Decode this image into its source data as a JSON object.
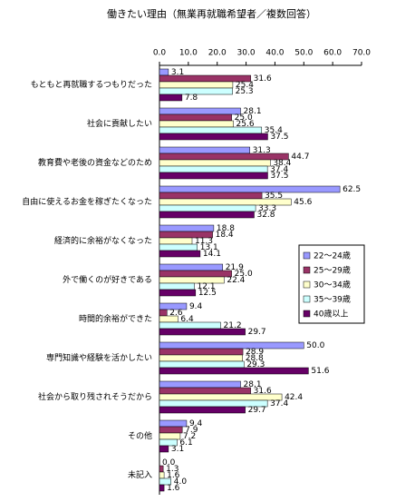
{
  "chart_data": {
    "type": "hbar",
    "title": "働きたい理由（無業再就職希望者／複数回答）",
    "categories": [
      "もともと再就職するつもりだった",
      "社会に貢献したい",
      "教育費や老後の資金などのため",
      "自由に使えるお金を稼ぎたくなった",
      "経済的に余裕がなくなった",
      "外で働くのが好きである",
      "時間的余裕ができた",
      "専門知識や経験を活かしたい",
      "社会から取り残されそうだから",
      "その他",
      "未記入"
    ],
    "series": [
      {
        "name": "22～24歳",
        "color": "#9999ff",
        "values": [
          3.1,
          28.1,
          31.3,
          62.5,
          18.8,
          21.9,
          9.4,
          50.0,
          28.1,
          9.4,
          0.0
        ],
        "value_labels": [
          "3.1",
          "28.1",
          "31.3",
          "62.5",
          "18.8",
          "21.9",
          "9.4",
          "50.0",
          "28.1",
          "9.4",
          "0.0"
        ]
      },
      {
        "name": "25～29歳",
        "color": "#993366",
        "values": [
          31.6,
          25.0,
          44.7,
          35.5,
          18.4,
          25.0,
          2.6,
          28.9,
          31.6,
          7.9,
          1.3
        ],
        "value_labels": [
          "31.6",
          "25.0",
          "44.7",
          "35.5",
          "18.4",
          "25.0",
          "2.6",
          "28.9",
          "31.6",
          "7.9",
          "1.3"
        ]
      },
      {
        "name": "30～34歳",
        "color": "#ffffcc",
        "values": [
          25.4,
          25.6,
          38.4,
          45.6,
          11.3,
          22.4,
          6.4,
          28.8,
          42.4,
          7.2,
          1.6
        ],
        "value_labels": [
          "25.4",
          "25.6",
          "38.4",
          "45.6",
          "11.3",
          "22.4",
          "6.4",
          "28.8",
          "42.4",
          "7.2",
          "1.6"
        ]
      },
      {
        "name": "35～39歳",
        "color": "#ccffff",
        "values": [
          25.3,
          35.4,
          37.4,
          33.3,
          13.1,
          12.1,
          21.2,
          29.3,
          37.4,
          6.1,
          4.0
        ],
        "value_labels": [
          "25.3",
          "35.4",
          "37.4",
          "33.3",
          "13.1",
          "12.1",
          "21.2",
          "29.3",
          "37.4",
          "6.1",
          "4.0"
        ]
      },
      {
        "name": "40歳以上",
        "color": "#660066",
        "values": [
          7.8,
          37.5,
          37.5,
          32.8,
          14.1,
          12.5,
          29.7,
          51.6,
          29.7,
          3.1,
          1.6
        ],
        "value_labels": [
          "7.8",
          "37.5",
          "37.5",
          "32.8",
          "14.1",
          "12.5",
          "29.7",
          "51.6",
          "29.7",
          "3.1",
          "1.6"
        ]
      }
    ],
    "xlim": [
      0,
      70
    ],
    "xticks": [
      {
        "value": 0,
        "label": "0.0"
      },
      {
        "value": 10,
        "label": "10.0"
      },
      {
        "value": 20,
        "label": "20.0"
      },
      {
        "value": 30,
        "label": "30.0"
      },
      {
        "value": 40,
        "label": "40.0"
      },
      {
        "value": 50,
        "label": "50.0"
      },
      {
        "value": 60,
        "label": "60.0"
      },
      {
        "value": 70,
        "label": "70.0"
      }
    ],
    "legend": "right"
  }
}
